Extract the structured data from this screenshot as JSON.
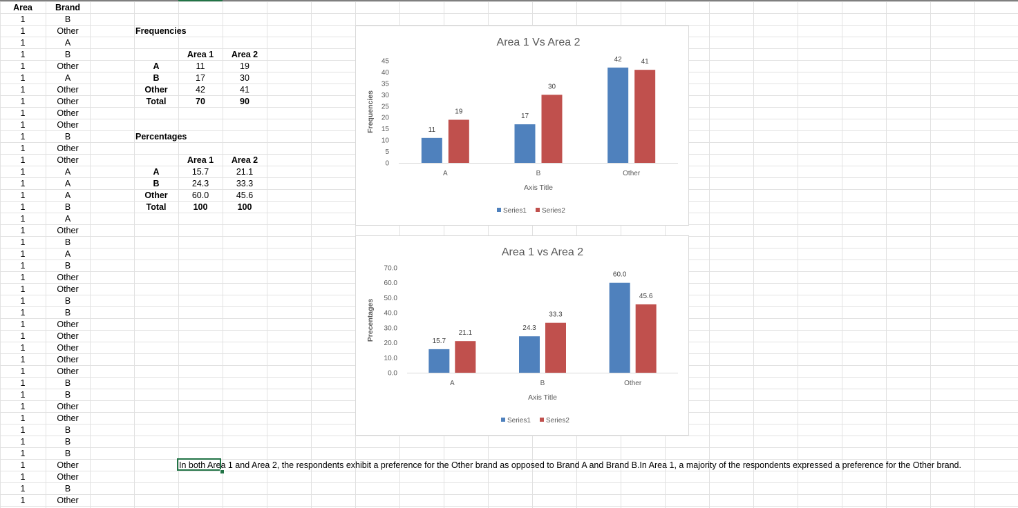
{
  "sheet": {
    "header_area": "Area",
    "header_brand": "Brand",
    "rows": [
      [
        "1",
        "B"
      ],
      [
        "1",
        "Other"
      ],
      [
        "1",
        "A"
      ],
      [
        "1",
        "B"
      ],
      [
        "1",
        "Other"
      ],
      [
        "1",
        "A"
      ],
      [
        "1",
        "Other"
      ],
      [
        "1",
        "Other"
      ],
      [
        "1",
        "Other"
      ],
      [
        "1",
        "Other"
      ],
      [
        "1",
        "B"
      ],
      [
        "1",
        "Other"
      ],
      [
        "1",
        "Other"
      ],
      [
        "1",
        "A"
      ],
      [
        "1",
        "A"
      ],
      [
        "1",
        "A"
      ],
      [
        "1",
        "B"
      ],
      [
        "1",
        "A"
      ],
      [
        "1",
        "Other"
      ],
      [
        "1",
        "B"
      ],
      [
        "1",
        "A"
      ],
      [
        "1",
        "B"
      ],
      [
        "1",
        "Other"
      ],
      [
        "1",
        "Other"
      ],
      [
        "1",
        "B"
      ],
      [
        "1",
        "B"
      ],
      [
        "1",
        "Other"
      ],
      [
        "1",
        "Other"
      ],
      [
        "1",
        "Other"
      ],
      [
        "1",
        "Other"
      ],
      [
        "1",
        "Other"
      ],
      [
        "1",
        "B"
      ],
      [
        "1",
        "B"
      ],
      [
        "1",
        "Other"
      ],
      [
        "1",
        "Other"
      ],
      [
        "1",
        "B"
      ],
      [
        "1",
        "B"
      ],
      [
        "1",
        "B"
      ],
      [
        "1",
        "Other"
      ],
      [
        "1",
        "Other"
      ],
      [
        "1",
        "B"
      ],
      [
        "1",
        "Other"
      ]
    ]
  },
  "frequencies": {
    "title": "Frequencies",
    "col1": "Area 1",
    "col2": "Area 2",
    "rows": [
      {
        "label": "A",
        "a1": "11",
        "a2": "19"
      },
      {
        "label": "B",
        "a1": "17",
        "a2": "30"
      },
      {
        "label": "Other",
        "a1": "42",
        "a2": "41"
      },
      {
        "label": "Total",
        "a1": "70",
        "a2": "90"
      }
    ]
  },
  "percentages": {
    "title": "Percentages",
    "col1": "Area 1",
    "col2": "Area 2",
    "rows": [
      {
        "label": "A",
        "a1": "15.7",
        "a2": "21.1"
      },
      {
        "label": "B",
        "a1": "24.3",
        "a2": "33.3"
      },
      {
        "label": "Other",
        "a1": "60.0",
        "a2": "45.6"
      },
      {
        "label": "Total",
        "a1": "100",
        "a2": "100"
      }
    ]
  },
  "note": "In both Area 1 and Area 2, the respondents exhibit a preference for the Other brand as opposed to Brand A and Brand B.In Area 1, a majority of the respondents expressed a preference for the Other brand.",
  "chart_data": [
    {
      "type": "bar",
      "title": "Area 1 Vs Area 2",
      "xlabel": "Axis Title",
      "ylabel": "Frequencies",
      "categories": [
        "A",
        "B",
        "Other"
      ],
      "series": [
        {
          "name": "Series1",
          "values": [
            11,
            17,
            42
          ],
          "color": "#4f81bd"
        },
        {
          "name": "Series2",
          "values": [
            19,
            30,
            41
          ],
          "color": "#c0504d"
        }
      ],
      "ylim": [
        0,
        45
      ],
      "yticks": [
        "0",
        "5",
        "10",
        "15",
        "20",
        "25",
        "30",
        "35",
        "40",
        "45"
      ],
      "data_labels": [
        [
          "11",
          "17",
          "42"
        ],
        [
          "19",
          "30",
          "41"
        ]
      ],
      "legend": "bottom",
      "grid": false
    },
    {
      "type": "bar",
      "title": "Area 1 vs Area 2",
      "xlabel": "Axis Title",
      "ylabel": "Precentages",
      "categories": [
        "A",
        "B",
        "Other"
      ],
      "series": [
        {
          "name": "Series1",
          "values": [
            15.7,
            24.3,
            60.0
          ],
          "color": "#4f81bd"
        },
        {
          "name": "Series2",
          "values": [
            21.1,
            33.3,
            45.6
          ],
          "color": "#c0504d"
        }
      ],
      "ylim": [
        0,
        70
      ],
      "yticks": [
        "0.0",
        "10.0",
        "20.0",
        "30.0",
        "40.0",
        "50.0",
        "60.0",
        "70.0"
      ],
      "data_labels": [
        [
          "15.7",
          "24.3",
          "60.0"
        ],
        [
          "21.1",
          "33.3",
          "45.6"
        ]
      ],
      "legend": "bottom",
      "grid": false
    }
  ]
}
